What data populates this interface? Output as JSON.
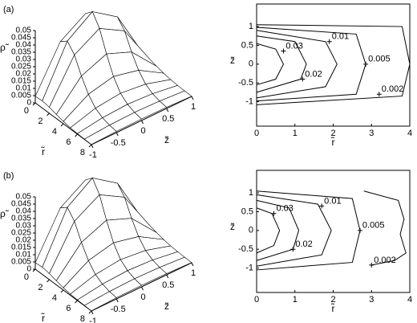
{
  "chart_data": [
    {
      "type": "surface",
      "label": "(a)",
      "xlabel": "r̃",
      "ylabel": "z̃",
      "zlabel": "ρ̃",
      "x": [
        0,
        1,
        2,
        3,
        4,
        5,
        6,
        7,
        8
      ],
      "y": [
        -1,
        -0.5,
        0,
        0.5,
        1
      ],
      "values": [
        [
          0.0045,
          0.005,
          0.0042,
          0.0028,
          0.0016,
          0.0008,
          0.0004,
          0.0002,
          0.0001
        ],
        [
          0.034,
          0.038,
          0.032,
          0.021,
          0.012,
          0.006,
          0.003,
          0.0015,
          0.0008
        ],
        [
          0.045,
          0.05,
          0.042,
          0.028,
          0.016,
          0.008,
          0.004,
          0.002,
          0.001
        ],
        [
          0.034,
          0.038,
          0.032,
          0.021,
          0.012,
          0.006,
          0.003,
          0.0015,
          0.0008
        ],
        [
          0.0045,
          0.005,
          0.0042,
          0.0028,
          0.0016,
          0.0008,
          0.0004,
          0.0002,
          0.0001
        ]
      ],
      "xlim": [
        0,
        8
      ],
      "ylim": [
        -1,
        1
      ],
      "zlim": [
        0,
        0.05
      ],
      "xticks": [
        0,
        2,
        4,
        6,
        8
      ],
      "yticks": [
        -1,
        -0.5,
        0,
        0.5,
        1
      ],
      "zticks": [
        0,
        0.005,
        0.01,
        0.015,
        0.02,
        0.025,
        0.03,
        0.035,
        0.04,
        0.045,
        0.05
      ]
    },
    {
      "type": "contour",
      "xlabel": "r̃",
      "ylabel": "z̃",
      "xlim": [
        0,
        4
      ],
      "ylim": [
        -1.65,
        1.6
      ],
      "xticks": [
        0,
        1,
        2,
        3,
        4
      ],
      "yticks": [
        -1,
        -0.5,
        0,
        0.5,
        1
      ],
      "contours": [
        {
          "level": 0.03,
          "x": [
            0,
            0.5,
            0.7,
            0.5,
            0
          ],
          "y": [
            0.55,
            0.4,
            0,
            -0.4,
            -0.55
          ],
          "label_x": 0.7,
          "label_y": 0.35
        },
        {
          "level": 0.02,
          "x": [
            0,
            1,
            1.3,
            1.15,
            0
          ],
          "y": [
            0.75,
            0.6,
            0,
            -0.4,
            -0.75
          ],
          "label_x": 1.2,
          "label_y": -0.4
        },
        {
          "level": 0.01,
          "x": [
            0,
            1.8,
            2.1,
            1.8,
            0
          ],
          "y": [
            0.9,
            0.6,
            0,
            -0.6,
            -0.9
          ],
          "label_x": 1.9,
          "label_y": 0.6
        },
        {
          "level": 0.005,
          "x": [
            0,
            2.6,
            2.85,
            2.6,
            0
          ],
          "y": [
            0.98,
            0.8,
            0,
            -0.8,
            -0.98
          ],
          "label_x": 2.85,
          "label_y": 0
        },
        {
          "level": 0.002,
          "x": [
            0,
            3.8,
            4,
            3.8,
            0
          ],
          "y": [
            1.05,
            1,
            0,
            -0.85,
            -1.08
          ],
          "label_x": 3.2,
          "label_y": -0.8
        }
      ]
    },
    {
      "type": "surface",
      "label": "(b)",
      "xlabel": "r̃",
      "ylabel": "z̃",
      "zlabel": "ρ̃",
      "x": [
        0,
        1,
        2,
        3,
        4,
        5,
        6,
        7,
        8
      ],
      "y": [
        -1,
        -0.5,
        0,
        0.5,
        1
      ],
      "values": [
        [
          0.0045,
          0.005,
          0.0042,
          0.0028,
          0.0016,
          0.0008,
          0.0004,
          0.0002,
          0.0001
        ],
        [
          0.034,
          0.038,
          0.032,
          0.021,
          0.012,
          0.006,
          0.003,
          0.0015,
          0.0008
        ],
        [
          0.045,
          0.05,
          0.042,
          0.028,
          0.016,
          0.008,
          0.004,
          0.002,
          0.001
        ],
        [
          0.034,
          0.038,
          0.032,
          0.021,
          0.012,
          0.006,
          0.003,
          0.0015,
          0.0008
        ],
        [
          0.0045,
          0.005,
          0.0042,
          0.0028,
          0.0016,
          0.0008,
          0.0004,
          0.0002,
          0.0001
        ]
      ],
      "xlim": [
        0,
        8
      ],
      "ylim": [
        -1,
        1
      ],
      "zlim": [
        0,
        0.05
      ],
      "xticks": [
        0,
        2,
        4,
        6,
        8
      ],
      "yticks": [
        -1,
        -0.5,
        0,
        0.5,
        1
      ],
      "zticks": [
        0,
        0.005,
        0.01,
        0.015,
        0.02,
        0.025,
        0.03,
        0.035,
        0.04,
        0.045,
        0.05
      ]
    },
    {
      "type": "contour",
      "xlabel": "r̃",
      "ylabel": "z̃",
      "xlim": [
        0,
        4
      ],
      "ylim": [
        -1.65,
        1.6
      ],
      "xticks": [
        0,
        1,
        2,
        3,
        4
      ],
      "yticks": [
        -1,
        -0.5,
        0,
        0.5,
        1
      ],
      "contours": [
        {
          "level": 0.03,
          "x": [
            0,
            0.4,
            0.6,
            0.45,
            0
          ],
          "y": [
            0.6,
            0.45,
            0,
            -0.4,
            -0.6
          ],
          "label_x": 0.45,
          "label_y": 0.45
        },
        {
          "level": 0.02,
          "x": [
            0,
            0.85,
            1.1,
            0.95,
            0
          ],
          "y": [
            0.8,
            0.6,
            0,
            -0.5,
            -0.8
          ],
          "label_x": 0.95,
          "label_y": -0.5
        },
        {
          "level": 0.01,
          "x": [
            0,
            1.6,
            1.95,
            1.7,
            0
          ],
          "y": [
            0.95,
            0.7,
            0,
            -0.65,
            -0.95
          ],
          "label_x": 1.7,
          "label_y": 0.65
        },
        {
          "level": 0.005,
          "x": [
            0,
            2.5,
            2.7,
            2.5,
            0
          ],
          "y": [
            1.05,
            0.85,
            0,
            -0.85,
            -1.05
          ],
          "label_x": 2.7,
          "label_y": 0
        },
        {
          "level": 0.002,
          "x": [
            2.8,
            3.7,
            3.85,
            3.75,
            3.9,
            3.6,
            3
          ],
          "y": [
            1.05,
            0.8,
            0.3,
            -0.1,
            -0.6,
            -0.8,
            -0.92
          ],
          "label_x": 3,
          "label_y": -0.92
        }
      ]
    }
  ]
}
